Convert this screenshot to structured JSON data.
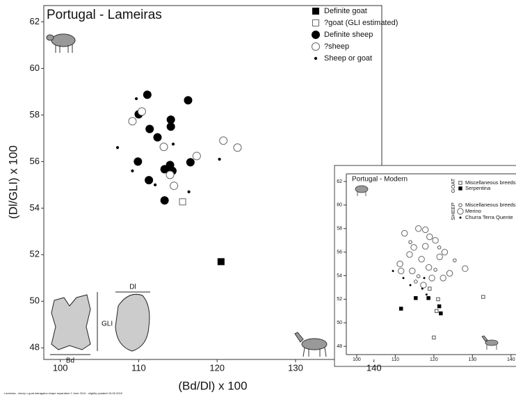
{
  "chart_data": [
    {
      "type": "scatter",
      "title": "Portugal - Lameiras",
      "x_label": "(Bd/Dl) x 100",
      "y_label": "(Dl/GLI) x 100",
      "xlim": [
        97.9,
        141
      ],
      "ylim": [
        47.5,
        62.7
      ],
      "xticks": [
        100,
        110,
        120,
        130,
        140
      ],
      "yticks": [
        48,
        50,
        52,
        54,
        56,
        58,
        60,
        62
      ],
      "grid": false,
      "legend": "upper right",
      "series": [
        {
          "name": "Definite goat",
          "marker": "square-filled",
          "color": "#000000",
          "x": [
            120.5
          ],
          "y": [
            51.7
          ]
        },
        {
          "name": "?goat (GLI estimated)",
          "marker": "square-open",
          "color": "#666666",
          "x": [
            115.6
          ],
          "y": [
            54.27
          ]
        },
        {
          "name": "Definite sheep",
          "marker": "circle-filled",
          "color": "#000000",
          "x": [
            111.1,
            110,
            116.3,
            114.1,
            114.1,
            111.4,
            112.4,
            109.9,
            116.6,
            114.0,
            113.3,
            114.3,
            111.3,
            113.3
          ],
          "y": [
            58.87,
            58.03,
            58.63,
            57.8,
            57.5,
            57.4,
            57.04,
            56.0,
            55.97,
            55.85,
            55.67,
            55.6,
            55.2,
            54.33
          ]
        },
        {
          "name": "?sheep",
          "marker": "circle-open",
          "color": "#666666",
          "x": [
            110.4,
            109.2,
            113.2,
            117.4,
            120.8,
            122.6,
            114.0,
            114.5
          ],
          "y": [
            58.15,
            57.73,
            56.63,
            56.24,
            56.9,
            56.6,
            55.43,
            54.96
          ]
        },
        {
          "name": "Sheep or goat",
          "marker": "dot",
          "color": "#000000",
          "x": [
            109.7,
            107.3,
            114.4,
            109.2,
            112.1,
            116.4,
            120.3
          ],
          "y": [
            58.7,
            56.6,
            56.75,
            55.6,
            55.0,
            54.7,
            56.1
          ]
        }
      ],
      "illustration_labels": [
        "GLI",
        "Dl",
        "Bd"
      ],
      "footer": "Lameiras - sheep v goat astragalus shape separation 2 June 2014  ·  slightly updated 15.06.2015"
    },
    {
      "type": "scatter",
      "title": "Portugal - Modern",
      "xlim": [
        97.3,
        141.3
      ],
      "ylim": [
        47.3,
        62.65
      ],
      "xticks": [
        100,
        110,
        120,
        130,
        140
      ],
      "yticks": [
        48,
        50,
        52,
        54,
        56,
        58,
        60,
        62
      ],
      "grid": false,
      "legend": "upper right",
      "legend_groups": [
        "GOAT",
        "SHEEP"
      ],
      "series": [
        {
          "name": "Miscellaneous breeds",
          "marker": "square-open",
          "color": "#555555",
          "x": [
            121.1,
            132.8,
            120,
            120.7,
            118.9
          ],
          "y": [
            52.0,
            52.2,
            48.75,
            51.0,
            52.9
          ]
        },
        {
          "name": "Serpentina",
          "marker": "square-filled",
          "color": "#000000",
          "x": [
            111.5,
            115.3,
            118.6,
            121.4,
            121.8
          ],
          "y": [
            51.2,
            52.1,
            52.1,
            51.4,
            50.8
          ]
        },
        {
          "name": "Miscellaneous breeds",
          "marker": "circle-small",
          "color": "#555555",
          "x": [
            113.9,
            121.4,
            116.0,
            125.4,
            115.3,
            120.4
          ],
          "y": [
            56.85,
            56.4,
            53.95,
            55.3,
            53.5,
            54.5
          ]
        },
        {
          "name": "Merino",
          "marker": "circle-open",
          "color": "#666666",
          "x": [
            116.0,
            117.8,
            112.4,
            118.9,
            120.4,
            114.8,
            117.8,
            122.8,
            113.7,
            116.8,
            121.5,
            111.2,
            118.7,
            114.4,
            124.1,
            128.1,
            111.5,
            122.4,
            119.5,
            117.3
          ],
          "y": [
            58.0,
            57.9,
            57.6,
            57.3,
            57.0,
            56.4,
            56.5,
            56.0,
            55.8,
            55.4,
            55.6,
            55.0,
            54.7,
            54.4,
            54.2,
            54.6,
            54.4,
            53.8,
            53.8,
            53.2
          ]
        },
        {
          "name": "Churra Terra Quente",
          "marker": "dot",
          "color": "#000000",
          "x": [
            117.5,
            109.4,
            117,
            112.1,
            118.1,
            113.9
          ],
          "y": [
            53.8,
            54.4,
            52.9,
            53.8,
            52.4,
            53.2
          ]
        }
      ]
    }
  ]
}
